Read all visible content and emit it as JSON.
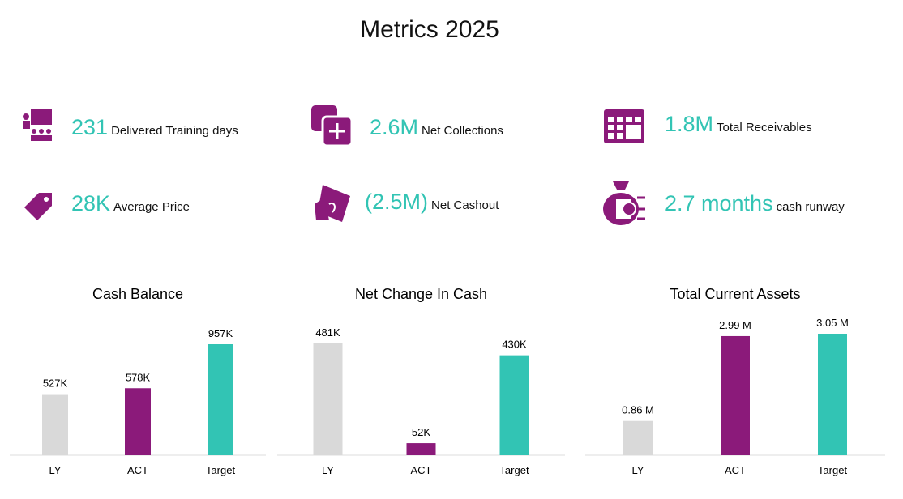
{
  "title": "Metrics 2025",
  "kpis": [
    {
      "value": "231",
      "label": "Delivered Training days"
    },
    {
      "value": "2.6M",
      "label": "Net Collections"
    },
    {
      "value": "1.8M",
      "label": "Total Receivables"
    },
    {
      "value": "28K",
      "label": "Average Price"
    },
    {
      "value": "(2.5M)",
      "label": "Net Cashout"
    },
    {
      "value": "2.7 months",
      "label": "cash runway"
    }
  ],
  "chart_data": [
    {
      "type": "bar",
      "title": "Cash Balance",
      "categories": [
        "LY",
        "ACT",
        "Target"
      ],
      "values": [
        527000,
        578000,
        957000
      ],
      "value_labels": [
        "527K",
        "578K",
        "957K"
      ],
      "colors": [
        "#d9d9d9",
        "#8b1a7a",
        "#32c4b4"
      ]
    },
    {
      "type": "bar",
      "title": "Net Change In Cash",
      "categories": [
        "LY",
        "ACT",
        "Target"
      ],
      "values": [
        481000,
        52000,
        430000
      ],
      "value_labels": [
        "481K",
        "52K",
        "430K"
      ],
      "colors": [
        "#d9d9d9",
        "#8b1a7a",
        "#32c4b4"
      ]
    },
    {
      "type": "bar",
      "title": "Total Current Assets",
      "categories": [
        "LY",
        "ACT",
        "Target"
      ],
      "values": [
        860000,
        2990000,
        3050000
      ],
      "value_labels": [
        "0.86 M",
        "2.99 M",
        "3.05 M"
      ],
      "colors": [
        "#d9d9d9",
        "#8b1a7a",
        "#32c4b4"
      ]
    }
  ]
}
